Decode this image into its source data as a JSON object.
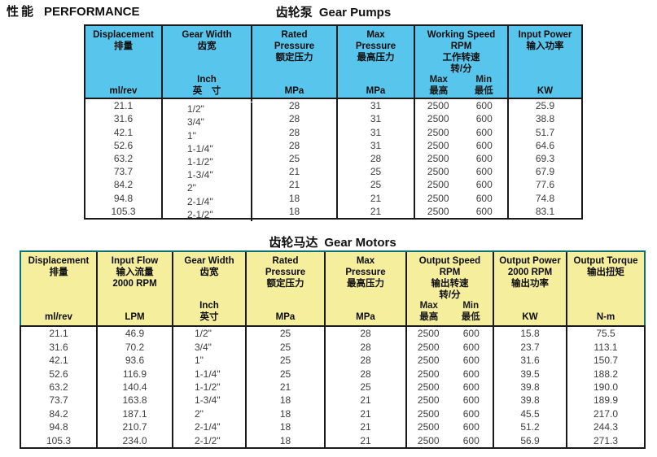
{
  "page": {
    "title_zh": "性能",
    "title_en": "PERFORMANCE"
  },
  "colors": {
    "pumps_header_bg": "#58C6EC",
    "motors_header_bg": "#F5EE9D",
    "motors_header_border": "#0E7070",
    "table_border": "#1A1A1A"
  },
  "pumps_table": {
    "title_zh": "齿轮泵",
    "title_en": "Gear Pumps",
    "columns": [
      {
        "lines": [
          "Displacement",
          "排量"
        ],
        "units": [
          "ml/rev"
        ]
      },
      {
        "lines": [
          "Gear Width",
          "齿宽"
        ],
        "units": [
          "Inch",
          "英　寸"
        ],
        "align": "left"
      },
      {
        "lines": [
          "Rated",
          "Pressure",
          "额定压力"
        ],
        "units": [
          "MPa"
        ]
      },
      {
        "lines": [
          "Max",
          "Pressure",
          "最高压力"
        ],
        "units": [
          "MPa"
        ]
      },
      {
        "lines": [
          "Working Speed",
          "RPM",
          "工作转速",
          "转/分"
        ],
        "split": true,
        "subcols": [
          {
            "en": "Max",
            "zh": "最高"
          },
          {
            "en": "Min",
            "zh": "最低"
          }
        ]
      },
      {
        "lines": [
          "Input Power",
          "输入功率"
        ],
        "units": [
          "KW"
        ]
      }
    ],
    "rows": [
      [
        "21.1",
        "1/2\"",
        "28",
        "31",
        [
          "2500",
          "600"
        ],
        "25.9"
      ],
      [
        "31.6",
        "3/4\"",
        "28",
        "31",
        [
          "2500",
          "600"
        ],
        "38.8"
      ],
      [
        "42.1",
        "1\"",
        "28",
        "31",
        [
          "2500",
          "600"
        ],
        "51.7"
      ],
      [
        "52.6",
        "1-1/4\"",
        "28",
        "31",
        [
          "2500",
          "600"
        ],
        "64.6"
      ],
      [
        "63.2",
        "1-1/2\"",
        "25",
        "28",
        [
          "2500",
          "600"
        ],
        "69.3"
      ],
      [
        "73.7",
        "1-3/4\"",
        "21",
        "25",
        [
          "2500",
          "600"
        ],
        "67.9"
      ],
      [
        "84.2",
        "2\"",
        "21",
        "25",
        [
          "2500",
          "600"
        ],
        "77.6"
      ],
      [
        "94.8",
        "2-1/4\"",
        "18",
        "21",
        [
          "2500",
          "600"
        ],
        "74.8"
      ],
      [
        "105.3",
        "2-1/2\"",
        "18",
        "21",
        [
          "2500",
          "600"
        ],
        "83.1"
      ]
    ]
  },
  "motors_table": {
    "title_zh": "齿轮马达",
    "title_en": "Gear Motors",
    "columns": [
      {
        "lines": [
          "Displacement",
          "排量"
        ],
        "units": [
          "ml/rev"
        ]
      },
      {
        "lines": [
          "Input Flow",
          "输入流量",
          "2000 RPM"
        ],
        "units": [
          "LPM"
        ]
      },
      {
        "lines": [
          "Gear Width",
          "齿宽"
        ],
        "units": [
          "Inch",
          "英寸"
        ],
        "align": "left"
      },
      {
        "lines": [
          "Rated",
          "Pressure",
          "额定压力"
        ],
        "units": [
          "MPa"
        ]
      },
      {
        "lines": [
          "Max",
          "Pressure",
          "最高压力"
        ],
        "units": [
          "MPa"
        ]
      },
      {
        "lines": [
          "Output Speed",
          "RPM",
          "输出转速",
          "转/分"
        ],
        "split": true,
        "subcols": [
          {
            "en": "Max",
            "zh": "最高"
          },
          {
            "en": "Min",
            "zh": "最低"
          }
        ]
      },
      {
        "lines": [
          "Output Power",
          "2000 RPM",
          "输出功率"
        ],
        "units": [
          "KW"
        ]
      },
      {
        "lines": [
          "Output Torque",
          "输出扭矩"
        ],
        "units": [
          "N-m"
        ]
      }
    ],
    "rows": [
      [
        "21.1",
        "46.9",
        "1/2\"",
        "25",
        "28",
        [
          "2500",
          "600"
        ],
        "15.8",
        "75.5"
      ],
      [
        "31.6",
        "70.2",
        "3/4\"",
        "25",
        "28",
        [
          "2500",
          "600"
        ],
        "23.7",
        "113.1"
      ],
      [
        "42.1",
        "93.6",
        "1\"",
        "25",
        "28",
        [
          "2500",
          "600"
        ],
        "31.6",
        "150.7"
      ],
      [
        "52.6",
        "116.9",
        "1-1/4\"",
        "25",
        "28",
        [
          "2500",
          "600"
        ],
        "39.5",
        "188.2"
      ],
      [
        "63.2",
        "140.4",
        "1-1/2\"",
        "21",
        "25",
        [
          "2500",
          "600"
        ],
        "39.8",
        "190.0"
      ],
      [
        "73.7",
        "163.8",
        "1-3/4\"",
        "18",
        "21",
        [
          "2500",
          "600"
        ],
        "39.8",
        "189.9"
      ],
      [
        "84.2",
        "187.1",
        "2\"",
        "18",
        "21",
        [
          "2500",
          "600"
        ],
        "45.5",
        "217.0"
      ],
      [
        "94.8",
        "210.7",
        "2-1/4\"",
        "18",
        "21",
        [
          "2500",
          "600"
        ],
        "51.2",
        "244.3"
      ],
      [
        "105.3",
        "234.0",
        "2-1/2\"",
        "18",
        "21",
        [
          "2500",
          "600"
        ],
        "56.9",
        "271.3"
      ]
    ]
  }
}
